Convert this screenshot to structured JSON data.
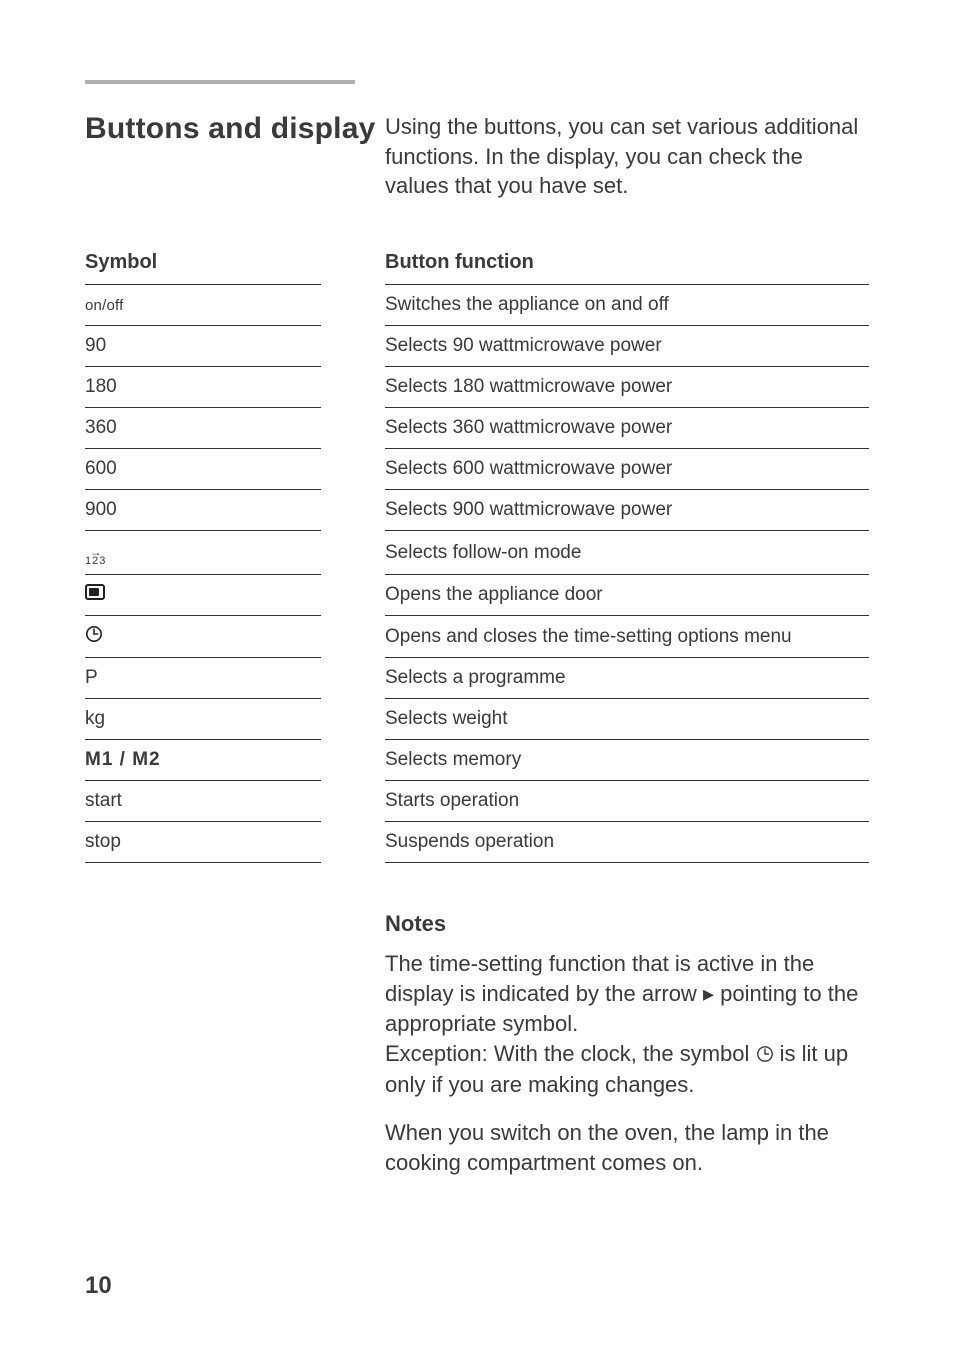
{
  "colors": {
    "text": "#3a3a3a",
    "rule": "#b0b0b0",
    "table_rule": "#333333",
    "background": "#ffffff"
  },
  "typography": {
    "heading_size_pt": 22,
    "body_size_pt": 16,
    "table_size_pt": 14
  },
  "heading": "Buttons and display",
  "intro": "Using the buttons, you can set various additional functions. In the display, you can check the values that you have set.",
  "table": {
    "headers": {
      "symbol": "Symbol",
      "function": "Button function"
    },
    "rows": [
      {
        "symbol_type": "text-onoff",
        "symbol_text": "on/off",
        "function": "Switches the appliance on and off"
      },
      {
        "symbol_type": "text-num",
        "symbol_text": "90",
        "function": "Selects 90 wattmicrowave power"
      },
      {
        "symbol_type": "text-num",
        "symbol_text": "180",
        "function": "Selects 180 wattmicrowave power"
      },
      {
        "symbol_type": "text-num",
        "symbol_text": "360",
        "function": "Selects 360 wattmicrowave power"
      },
      {
        "symbol_type": "text-num",
        "symbol_text": "600",
        "function": "Selects 600 wattmicrowave power"
      },
      {
        "symbol_type": "text-num",
        "symbol_text": "900",
        "function": "Selects 900 wattmicrowave power"
      },
      {
        "symbol_type": "arrow123",
        "symbol_text": "→123",
        "function": "Selects follow-on mode"
      },
      {
        "symbol_type": "door-icon",
        "symbol_text": "door",
        "function": "Opens the appliance door"
      },
      {
        "symbol_type": "clock-icon",
        "symbol_text": "clock",
        "function": "Opens and closes the time-setting options menu"
      },
      {
        "symbol_type": "text-p",
        "symbol_text": "P",
        "function": "Selects a programme"
      },
      {
        "symbol_type": "text-kg",
        "symbol_text": "kg",
        "function": "Selects weight"
      },
      {
        "symbol_type": "text-mem",
        "symbol_text": "M1 / M2",
        "function": "Selects memory"
      },
      {
        "symbol_type": "text",
        "symbol_text": "start",
        "function": "Starts operation"
      },
      {
        "symbol_type": "text",
        "symbol_text": "stop",
        "function": "Suspends operation"
      }
    ]
  },
  "notes": {
    "heading": "Notes",
    "p1a": "The time-setting function that is active in the display is indicated by the arrow ",
    "p1_arrow": "▸",
    "p1b": " pointing to the appropriate symbol.",
    "p2a": "Exception: With the clock, the symbol ",
    "p2b": " is lit up only if you are making changes.",
    "p3": "When you switch on the oven, the lamp in the cooking compartment comes on."
  },
  "page_number": "10"
}
